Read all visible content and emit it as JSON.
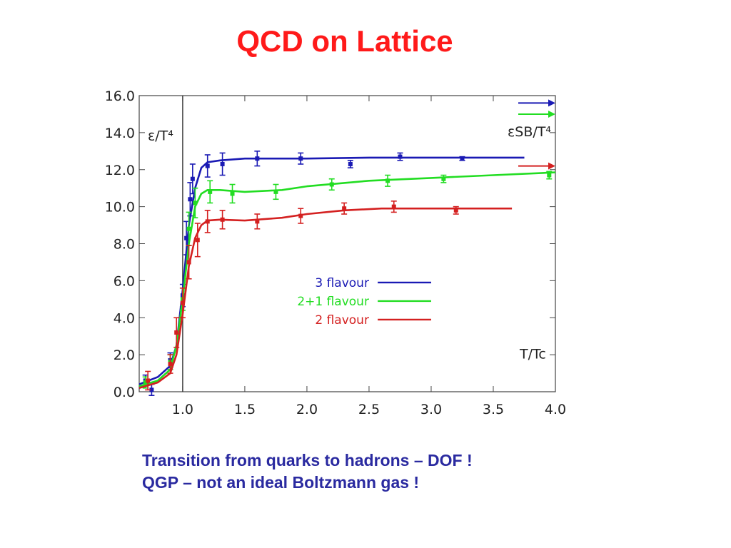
{
  "slide": {
    "title": "QCD on Lattice",
    "captions": [
      "Transition from quarks to hadrons – DOF !",
      "QGP – not an ideal Boltzmann gas !"
    ]
  },
  "chart_data": {
    "type": "line",
    "title": "",
    "xlabel": "T/Tc",
    "ylabel": "ε/T⁴",
    "sb_label": "εSB/T⁴",
    "xlim": [
      0.65,
      4.0
    ],
    "ylim": [
      0.0,
      16.0
    ],
    "x_ticks": [
      "1.0",
      "1.5",
      "2.0",
      "2.5",
      "3.0",
      "3.5",
      "4.0"
    ],
    "y_ticks": [
      "0.0",
      "2.0",
      "4.0",
      "6.0",
      "8.0",
      "10.0",
      "12.0",
      "14.0",
      "16.0"
    ],
    "vertical_line_x": 1.0,
    "grid": false,
    "legend_position": "center",
    "series": [
      {
        "name": "3 flavour",
        "color": "#1a1ab4",
        "curve": [
          [
            0.65,
            0.4
          ],
          [
            0.8,
            0.8
          ],
          [
            0.9,
            1.4
          ],
          [
            0.95,
            2.5
          ],
          [
            1.0,
            5.5
          ],
          [
            1.05,
            9.0
          ],
          [
            1.1,
            11.0
          ],
          [
            1.15,
            12.1
          ],
          [
            1.2,
            12.4
          ],
          [
            1.3,
            12.5
          ],
          [
            1.5,
            12.6
          ],
          [
            1.8,
            12.6
          ],
          [
            2.0,
            12.6
          ],
          [
            2.5,
            12.65
          ],
          [
            3.0,
            12.65
          ],
          [
            3.5,
            12.65
          ],
          [
            3.75,
            12.65
          ]
        ],
        "points": [
          [
            0.7,
            0.6,
            0.3
          ],
          [
            0.75,
            0.1,
            0.3
          ],
          [
            0.9,
            1.7,
            0.4
          ],
          [
            1.0,
            5.2,
            0.6
          ],
          [
            1.03,
            8.3,
            0.9
          ],
          [
            1.06,
            10.4,
            0.9
          ],
          [
            1.08,
            11.5,
            0.8
          ],
          [
            1.2,
            12.2,
            0.6
          ],
          [
            1.32,
            12.3,
            0.6
          ],
          [
            1.6,
            12.6,
            0.4
          ],
          [
            1.95,
            12.6,
            0.3
          ],
          [
            2.35,
            12.3,
            0.2
          ],
          [
            2.75,
            12.7,
            0.2
          ],
          [
            3.25,
            12.6,
            0.1
          ]
        ],
        "sb_limit": 15.6
      },
      {
        "name": "2+1 flavour",
        "color": "#22dd22",
        "curve": [
          [
            0.65,
            0.3
          ],
          [
            0.8,
            0.6
          ],
          [
            0.9,
            1.2
          ],
          [
            0.95,
            2.5
          ],
          [
            1.0,
            5.0
          ],
          [
            1.05,
            8.0
          ],
          [
            1.1,
            10.0
          ],
          [
            1.15,
            10.7
          ],
          [
            1.2,
            10.9
          ],
          [
            1.3,
            10.9
          ],
          [
            1.5,
            10.8
          ],
          [
            1.8,
            10.9
          ],
          [
            2.0,
            11.1
          ],
          [
            2.5,
            11.4
          ],
          [
            3.0,
            11.55
          ],
          [
            3.5,
            11.7
          ],
          [
            4.0,
            11.85
          ]
        ],
        "points": [
          [
            0.7,
            0.5,
            0.3
          ],
          [
            0.9,
            1.6,
            0.4
          ],
          [
            1.0,
            5.0,
            0.6
          ],
          [
            1.05,
            8.8,
            0.9
          ],
          [
            1.1,
            10.2,
            0.8
          ],
          [
            1.22,
            10.8,
            0.6
          ],
          [
            1.4,
            10.7,
            0.5
          ],
          [
            1.75,
            10.8,
            0.4
          ],
          [
            2.2,
            11.2,
            0.3
          ],
          [
            2.65,
            11.4,
            0.3
          ],
          [
            3.1,
            11.5,
            0.2
          ],
          [
            3.95,
            11.7,
            0.2
          ]
        ],
        "sb_limit": 15.0
      },
      {
        "name": "2 flavour",
        "color": "#d42020",
        "curve": [
          [
            0.65,
            0.2
          ],
          [
            0.8,
            0.5
          ],
          [
            0.9,
            1.0
          ],
          [
            0.95,
            2.0
          ],
          [
            1.0,
            4.2
          ],
          [
            1.05,
            6.8
          ],
          [
            1.1,
            8.3
          ],
          [
            1.15,
            9.0
          ],
          [
            1.2,
            9.25
          ],
          [
            1.3,
            9.3
          ],
          [
            1.5,
            9.25
          ],
          [
            1.8,
            9.4
          ],
          [
            2.0,
            9.6
          ],
          [
            2.3,
            9.8
          ],
          [
            2.6,
            9.9
          ],
          [
            3.0,
            9.9
          ],
          [
            3.65,
            9.9
          ]
        ],
        "points": [
          [
            0.72,
            0.6,
            0.5
          ],
          [
            0.9,
            1.5,
            0.5
          ],
          [
            0.95,
            3.2,
            0.8
          ],
          [
            1.0,
            4.8,
            0.8
          ],
          [
            1.05,
            7.0,
            0.9
          ],
          [
            1.12,
            8.2,
            0.9
          ],
          [
            1.2,
            9.2,
            0.6
          ],
          [
            1.32,
            9.3,
            0.5
          ],
          [
            1.6,
            9.2,
            0.4
          ],
          [
            1.95,
            9.5,
            0.4
          ],
          [
            2.3,
            9.9,
            0.3
          ],
          [
            2.7,
            10.0,
            0.3
          ],
          [
            3.2,
            9.8,
            0.2
          ]
        ],
        "sb_limit": 12.2
      }
    ]
  }
}
